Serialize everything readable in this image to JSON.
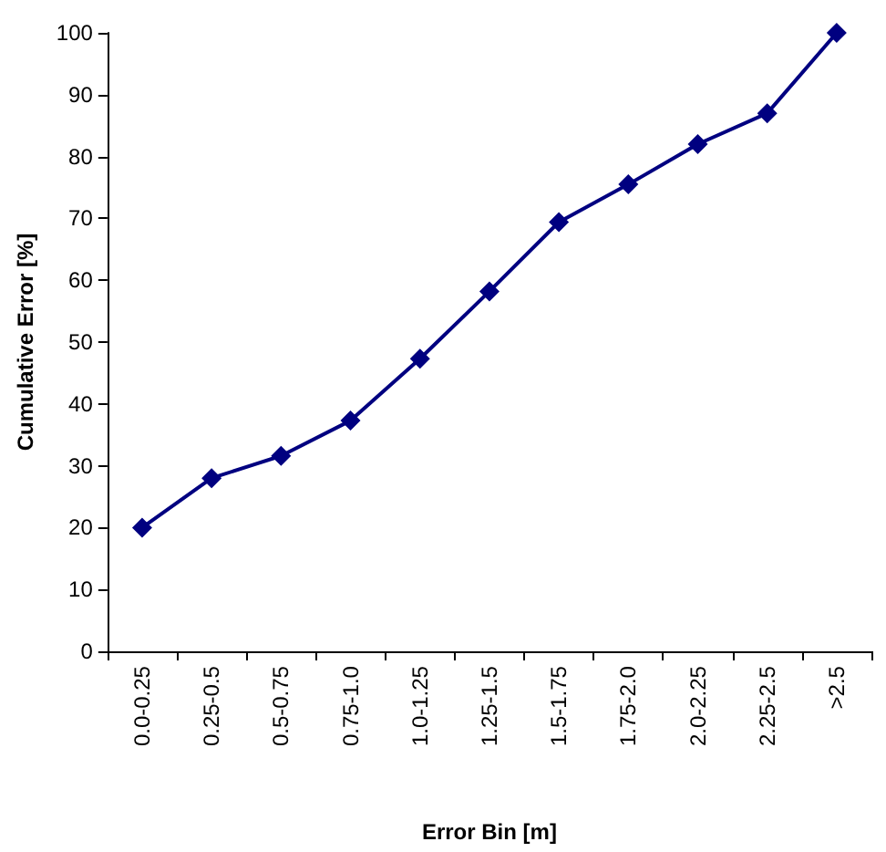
{
  "chart_data": {
    "type": "line",
    "xlabel": "Error Bin [m]",
    "ylabel": "Cumulative Error [%]",
    "categories": [
      "0.0-0.25",
      "0.25-0.5",
      "0.5-0.75",
      "0.75-1.0",
      "1.0-1.25",
      "1.25-1.5",
      "1.5-1.75",
      "1.75-2.0",
      "2.0-2.25",
      "2.25-2.5",
      ">2.5"
    ],
    "series": [
      {
        "color": "#000080",
        "values": [
          20,
          28,
          31.6,
          37.3,
          47.3,
          58.2,
          69.4,
          75.5,
          82,
          87,
          100
        ]
      }
    ],
    "ylim": [
      0,
      100
    ],
    "yticks": [
      0,
      10,
      20,
      30,
      40,
      50,
      60,
      70,
      80,
      90,
      100
    ],
    "grid": false,
    "marker": "diamond",
    "line_style": "solid"
  }
}
